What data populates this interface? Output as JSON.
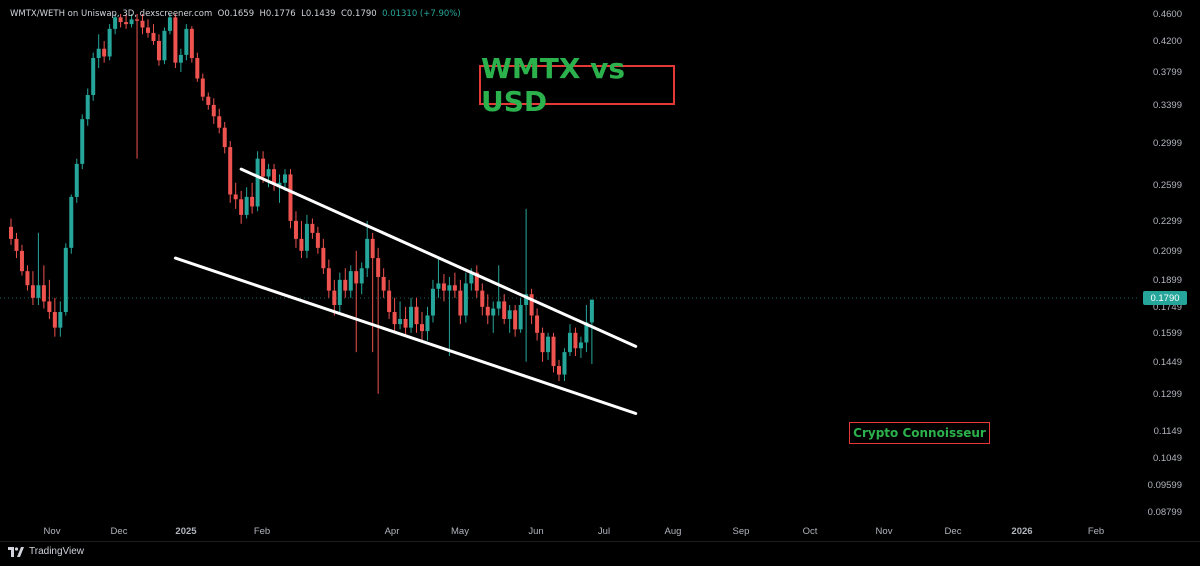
{
  "header": {
    "symbol": "WMTX/WETH on Uniswap, 3D, dexscreener.com",
    "open": "O",
    "open_val": "0.1659",
    "high": "H",
    "high_val": "0.1776",
    "low": "L",
    "low_val": "0.1439",
    "close": "C",
    "close_val": "0.1790",
    "change": "0.01310 (+7.90%)"
  },
  "title": "WMTX vs USD",
  "credit": "Crypto Connoisseur",
  "brand": "TradingView",
  "current_price": "0.1790",
  "colors": {
    "up": "#26a69a",
    "down": "#ef5350",
    "background": "#000000",
    "trendline": "#ffffff",
    "title_text": "#2bb24c",
    "box_border": "#e53935"
  },
  "chart_data": {
    "type": "candlestick",
    "y_ticks": [
      "0.4600",
      "0.4200",
      "0.3799",
      "0.3399",
      "0.2999",
      "0.2599",
      "0.2299",
      "0.2099",
      "0.1899",
      "0.1749",
      "0.1599",
      "0.1449",
      "0.1299",
      "0.1149",
      "0.1049",
      "0.09599",
      "0.08799"
    ],
    "x_ticks": [
      "Nov",
      "Dec",
      "2025",
      "Feb",
      "Apr",
      "May",
      "Jun",
      "Jul",
      "Aug",
      "Sep",
      "Oct",
      "Nov",
      "Dec",
      "2026",
      "Feb"
    ],
    "current_price": 0.179,
    "grid": false,
    "candles": [
      {
        "o": 0.226,
        "h": 0.232,
        "l": 0.214,
        "c": 0.218
      },
      {
        "o": 0.218,
        "h": 0.222,
        "l": 0.205,
        "c": 0.21
      },
      {
        "o": 0.21,
        "h": 0.214,
        "l": 0.193,
        "c": 0.196
      },
      {
        "o": 0.196,
        "h": 0.2,
        "l": 0.184,
        "c": 0.187
      },
      {
        "o": 0.187,
        "h": 0.196,
        "l": 0.176,
        "c": 0.18
      },
      {
        "o": 0.18,
        "h": 0.222,
        "l": 0.176,
        "c": 0.187
      },
      {
        "o": 0.187,
        "h": 0.2,
        "l": 0.174,
        "c": 0.178
      },
      {
        "o": 0.178,
        "h": 0.19,
        "l": 0.168,
        "c": 0.172
      },
      {
        "o": 0.172,
        "h": 0.18,
        "l": 0.158,
        "c": 0.163
      },
      {
        "o": 0.163,
        "h": 0.178,
        "l": 0.158,
        "c": 0.172
      },
      {
        "o": 0.172,
        "h": 0.215,
        "l": 0.17,
        "c": 0.212
      },
      {
        "o": 0.212,
        "h": 0.252,
        "l": 0.208,
        "c": 0.25
      },
      {
        "o": 0.25,
        "h": 0.285,
        "l": 0.245,
        "c": 0.28
      },
      {
        "o": 0.28,
        "h": 0.33,
        "l": 0.275,
        "c": 0.325
      },
      {
        "o": 0.325,
        "h": 0.36,
        "l": 0.318,
        "c": 0.352
      },
      {
        "o": 0.352,
        "h": 0.405,
        "l": 0.345,
        "c": 0.398
      },
      {
        "o": 0.398,
        "h": 0.43,
        "l": 0.385,
        "c": 0.41
      },
      {
        "o": 0.41,
        "h": 0.42,
        "l": 0.392,
        "c": 0.4
      },
      {
        "o": 0.4,
        "h": 0.445,
        "l": 0.395,
        "c": 0.438
      },
      {
        "o": 0.438,
        "h": 0.46,
        "l": 0.43,
        "c": 0.455
      },
      {
        "o": 0.455,
        "h": 0.46,
        "l": 0.44,
        "c": 0.448
      },
      {
        "o": 0.448,
        "h": 0.46,
        "l": 0.438,
        "c": 0.445
      },
      {
        "o": 0.445,
        "h": 0.46,
        "l": 0.44,
        "c": 0.452
      },
      {
        "o": 0.452,
        "h": 0.46,
        "l": 0.285,
        "c": 0.45
      },
      {
        "o": 0.45,
        "h": 0.46,
        "l": 0.43,
        "c": 0.44
      },
      {
        "o": 0.44,
        "h": 0.452,
        "l": 0.425,
        "c": 0.432
      },
      {
        "o": 0.432,
        "h": 0.445,
        "l": 0.415,
        "c": 0.42
      },
      {
        "o": 0.42,
        "h": 0.43,
        "l": 0.388,
        "c": 0.395
      },
      {
        "o": 0.395,
        "h": 0.44,
        "l": 0.39,
        "c": 0.435
      },
      {
        "o": 0.435,
        "h": 0.46,
        "l": 0.43,
        "c": 0.455
      },
      {
        "o": 0.455,
        "h": 0.46,
        "l": 0.385,
        "c": 0.392
      },
      {
        "o": 0.392,
        "h": 0.41,
        "l": 0.38,
        "c": 0.402
      },
      {
        "o": 0.402,
        "h": 0.445,
        "l": 0.395,
        "c": 0.438
      },
      {
        "o": 0.438,
        "h": 0.442,
        "l": 0.392,
        "c": 0.398
      },
      {
        "o": 0.398,
        "h": 0.405,
        "l": 0.368,
        "c": 0.372
      },
      {
        "o": 0.372,
        "h": 0.378,
        "l": 0.345,
        "c": 0.35
      },
      {
        "o": 0.35,
        "h": 0.355,
        "l": 0.335,
        "c": 0.34
      },
      {
        "o": 0.34,
        "h": 0.348,
        "l": 0.32,
        "c": 0.328
      },
      {
        "o": 0.328,
        "h": 0.336,
        "l": 0.31,
        "c": 0.316
      },
      {
        "o": 0.316,
        "h": 0.322,
        "l": 0.29,
        "c": 0.296
      },
      {
        "o": 0.296,
        "h": 0.302,
        "l": 0.245,
        "c": 0.252
      },
      {
        "o": 0.252,
        "h": 0.262,
        "l": 0.24,
        "c": 0.248
      },
      {
        "o": 0.248,
        "h": 0.255,
        "l": 0.228,
        "c": 0.235
      },
      {
        "o": 0.235,
        "h": 0.258,
        "l": 0.232,
        "c": 0.25
      },
      {
        "o": 0.25,
        "h": 0.262,
        "l": 0.236,
        "c": 0.242
      },
      {
        "o": 0.242,
        "h": 0.292,
        "l": 0.238,
        "c": 0.285
      },
      {
        "o": 0.285,
        "h": 0.292,
        "l": 0.262,
        "c": 0.268
      },
      {
        "o": 0.268,
        "h": 0.28,
        "l": 0.258,
        "c": 0.275
      },
      {
        "o": 0.275,
        "h": 0.28,
        "l": 0.255,
        "c": 0.26
      },
      {
        "o": 0.26,
        "h": 0.27,
        "l": 0.245,
        "c": 0.262
      },
      {
        "o": 0.262,
        "h": 0.275,
        "l": 0.255,
        "c": 0.27
      },
      {
        "o": 0.27,
        "h": 0.275,
        "l": 0.225,
        "c": 0.23
      },
      {
        "o": 0.23,
        "h": 0.238,
        "l": 0.212,
        "c": 0.218
      },
      {
        "o": 0.218,
        "h": 0.23,
        "l": 0.205,
        "c": 0.21
      },
      {
        "o": 0.21,
        "h": 0.235,
        "l": 0.205,
        "c": 0.228
      },
      {
        "o": 0.228,
        "h": 0.232,
        "l": 0.218,
        "c": 0.222
      },
      {
        "o": 0.222,
        "h": 0.226,
        "l": 0.208,
        "c": 0.212
      },
      {
        "o": 0.212,
        "h": 0.218,
        "l": 0.194,
        "c": 0.198
      },
      {
        "o": 0.198,
        "h": 0.204,
        "l": 0.18,
        "c": 0.184
      },
      {
        "o": 0.184,
        "h": 0.19,
        "l": 0.17,
        "c": 0.176
      },
      {
        "o": 0.176,
        "h": 0.195,
        "l": 0.172,
        "c": 0.19
      },
      {
        "o": 0.19,
        "h": 0.198,
        "l": 0.18,
        "c": 0.184
      },
      {
        "o": 0.184,
        "h": 0.2,
        "l": 0.18,
        "c": 0.196
      },
      {
        "o": 0.196,
        "h": 0.21,
        "l": 0.15,
        "c": 0.188
      },
      {
        "o": 0.188,
        "h": 0.202,
        "l": 0.182,
        "c": 0.198
      },
      {
        "o": 0.198,
        "h": 0.23,
        "l": 0.192,
        "c": 0.218
      },
      {
        "o": 0.218,
        "h": 0.222,
        "l": 0.15,
        "c": 0.205
      },
      {
        "o": 0.205,
        "h": 0.212,
        "l": 0.13,
        "c": 0.192
      },
      {
        "o": 0.192,
        "h": 0.198,
        "l": 0.18,
        "c": 0.184
      },
      {
        "o": 0.184,
        "h": 0.19,
        "l": 0.168,
        "c": 0.172
      },
      {
        "o": 0.172,
        "h": 0.18,
        "l": 0.16,
        "c": 0.165
      },
      {
        "o": 0.165,
        "h": 0.178,
        "l": 0.162,
        "c": 0.168
      },
      {
        "o": 0.168,
        "h": 0.175,
        "l": 0.158,
        "c": 0.163
      },
      {
        "o": 0.163,
        "h": 0.18,
        "l": 0.16,
        "c": 0.175
      },
      {
        "o": 0.175,
        "h": 0.18,
        "l": 0.16,
        "c": 0.165
      },
      {
        "o": 0.165,
        "h": 0.172,
        "l": 0.156,
        "c": 0.161
      },
      {
        "o": 0.161,
        "h": 0.175,
        "l": 0.156,
        "c": 0.17
      },
      {
        "o": 0.17,
        "h": 0.19,
        "l": 0.166,
        "c": 0.185
      },
      {
        "o": 0.185,
        "h": 0.205,
        "l": 0.18,
        "c": 0.188
      },
      {
        "o": 0.188,
        "h": 0.194,
        "l": 0.178,
        "c": 0.184
      },
      {
        "o": 0.184,
        "h": 0.192,
        "l": 0.148,
        "c": 0.187
      },
      {
        "o": 0.187,
        "h": 0.195,
        "l": 0.18,
        "c": 0.184
      },
      {
        "o": 0.184,
        "h": 0.19,
        "l": 0.165,
        "c": 0.17
      },
      {
        "o": 0.17,
        "h": 0.195,
        "l": 0.166,
        "c": 0.188
      },
      {
        "o": 0.188,
        "h": 0.198,
        "l": 0.184,
        "c": 0.195
      },
      {
        "o": 0.195,
        "h": 0.2,
        "l": 0.18,
        "c": 0.184
      },
      {
        "o": 0.184,
        "h": 0.188,
        "l": 0.17,
        "c": 0.175
      },
      {
        "o": 0.175,
        "h": 0.182,
        "l": 0.165,
        "c": 0.17
      },
      {
        "o": 0.17,
        "h": 0.178,
        "l": 0.16,
        "c": 0.174
      },
      {
        "o": 0.174,
        "h": 0.2,
        "l": 0.17,
        "c": 0.178
      },
      {
        "o": 0.178,
        "h": 0.182,
        "l": 0.165,
        "c": 0.168
      },
      {
        "o": 0.168,
        "h": 0.176,
        "l": 0.16,
        "c": 0.173
      },
      {
        "o": 0.173,
        "h": 0.176,
        "l": 0.158,
        "c": 0.162
      },
      {
        "o": 0.162,
        "h": 0.18,
        "l": 0.16,
        "c": 0.176
      },
      {
        "o": 0.176,
        "h": 0.24,
        "l": 0.145,
        "c": 0.182
      },
      {
        "o": 0.182,
        "h": 0.185,
        "l": 0.165,
        "c": 0.17
      },
      {
        "o": 0.17,
        "h": 0.174,
        "l": 0.156,
        "c": 0.16
      },
      {
        "o": 0.16,
        "h": 0.163,
        "l": 0.145,
        "c": 0.15
      },
      {
        "o": 0.15,
        "h": 0.16,
        "l": 0.146,
        "c": 0.158
      },
      {
        "o": 0.158,
        "h": 0.16,
        "l": 0.14,
        "c": 0.143
      },
      {
        "o": 0.143,
        "h": 0.146,
        "l": 0.136,
        "c": 0.139
      },
      {
        "o": 0.139,
        "h": 0.152,
        "l": 0.136,
        "c": 0.15
      },
      {
        "o": 0.15,
        "h": 0.165,
        "l": 0.148,
        "c": 0.16
      },
      {
        "o": 0.16,
        "h": 0.163,
        "l": 0.148,
        "c": 0.152
      },
      {
        "o": 0.152,
        "h": 0.158,
        "l": 0.147,
        "c": 0.155
      },
      {
        "o": 0.155,
        "h": 0.176,
        "l": 0.15,
        "c": 0.166
      },
      {
        "o": 0.166,
        "h": 0.178,
        "l": 0.144,
        "c": 0.179
      }
    ],
    "trendlines": [
      {
        "from_candle": 42,
        "from_price": 0.275,
        "to_candle": 114,
        "to_price": 0.153
      },
      {
        "from_candle": 30,
        "from_price": 0.205,
        "to_candle": 114,
        "to_price": 0.122
      }
    ]
  }
}
